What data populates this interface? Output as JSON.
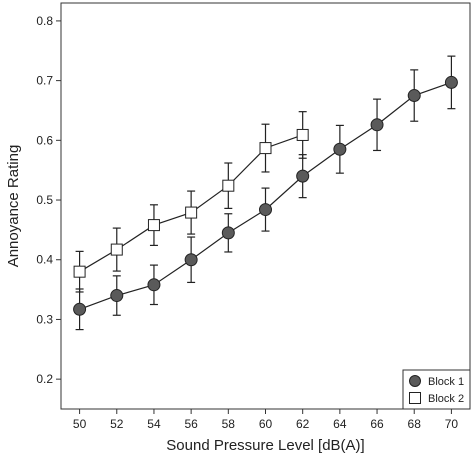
{
  "chart_data": {
    "type": "line",
    "xlabel": "Sound Pressure Level [dB(A)]",
    "ylabel": "Annoyance Rating",
    "xlim": [
      49,
      71
    ],
    "ylim": [
      0.15,
      0.83
    ],
    "x_ticks": [
      50,
      52,
      54,
      56,
      58,
      60,
      62,
      64,
      66,
      68,
      70
    ],
    "y_ticks": [
      0.2,
      0.3,
      0.4,
      0.5,
      0.6,
      0.7,
      0.8
    ],
    "grid": false,
    "legend_position": "bottom-right",
    "series": [
      {
        "name": "Block 1",
        "marker": "circle",
        "fill": "#5a5a5a",
        "x": [
          50,
          52,
          54,
          56,
          58,
          60,
          62,
          64,
          66,
          68,
          70
        ],
        "y": [
          0.317,
          0.34,
          0.358,
          0.4,
          0.445,
          0.484,
          0.54,
          0.585,
          0.626,
          0.675,
          0.697
        ],
        "err": [
          0.034,
          0.033,
          0.033,
          0.038,
          0.032,
          0.036,
          0.036,
          0.04,
          0.043,
          0.043,
          0.044
        ]
      },
      {
        "name": "Block 2",
        "marker": "square",
        "fill": "#ffffff",
        "x": [
          50,
          52,
          54,
          56,
          58,
          60,
          62
        ],
        "y": [
          0.38,
          0.417,
          0.458,
          0.479,
          0.524,
          0.587,
          0.609
        ],
        "err": [
          0.034,
          0.036,
          0.034,
          0.036,
          0.038,
          0.04,
          0.039
        ]
      }
    ]
  }
}
